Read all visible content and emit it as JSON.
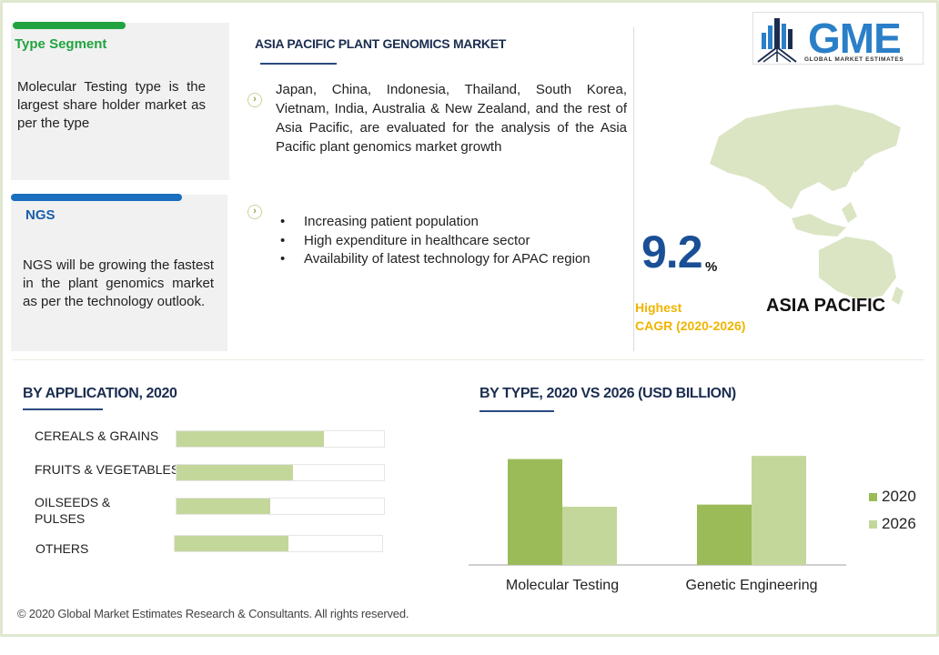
{
  "type_segment": {
    "title": "Type Segment",
    "text": "Molecular Testing type is the largest share holder market as per the type"
  },
  "ngs_segment": {
    "title": "NGS",
    "text": "NGS will be growing the fastest in the plant genomics market as per the technology outlook."
  },
  "market": {
    "title": "ASIA PACIFIC PLANT GENOMICS MARKET",
    "description": "Japan, China, Indonesia, Thailand, South Korea, Vietnam, India, Australia & New Zealand, and the rest of Asia Pacific, are evaluated for the analysis of the Asia Pacific plant genomics market growth",
    "drivers": [
      "Increasing patient population",
      "High expenditure in healthcare sector",
      "Availability of latest technology for APAC region"
    ]
  },
  "logo": {
    "text": "GME",
    "subtitle": "GLOBAL MARKET ESTIMATES",
    "icon": "building-chart-icon"
  },
  "cagr": {
    "value": "9.2",
    "unit": "%",
    "label_line1": "Highest",
    "label_line2": "CAGR (2020-2026)",
    "region": "ASIA PACIFIC"
  },
  "colors": {
    "accent_green": "#22a33f",
    "accent_blue": "#1a6fbf",
    "bar_2020": "#9bbb59",
    "bar_2026": "#c4d79b",
    "highlight": "#f0b400"
  },
  "chart_data": [
    {
      "type": "bar",
      "orientation": "horizontal",
      "title": "BY APPLICATION, 2020",
      "categories": [
        "CEREALS & GRAINS",
        "FRUITS & VEGETABLES",
        "OILSEEDS & PULSES",
        "OTHERS"
      ],
      "values": [
        0.71,
        0.56,
        0.45,
        0.55
      ],
      "value_unit": "fraction of max"
    },
    {
      "type": "bar",
      "title": "BY TYPE,  2020 VS 2026 (USD BILLION)",
      "categories": [
        "Molecular Testing",
        "Genetic Engineering"
      ],
      "series": [
        {
          "name": "2020",
          "values": [
            1.0,
            0.57
          ]
        },
        {
          "name": "2026",
          "values": [
            0.55,
            1.03
          ]
        }
      ],
      "ylim": [
        0,
        1.1
      ],
      "grid": false,
      "legend": "right"
    }
  ],
  "app_labels_display": [
    "CEREALS & GRAINS",
    "FRUITS & VEGETABLES",
    "OILSEEDS &",
    "PULSES",
    "OTHERS"
  ],
  "footer": "© 2020 Global Market Estimates Research & Consultants. All rights reserved."
}
